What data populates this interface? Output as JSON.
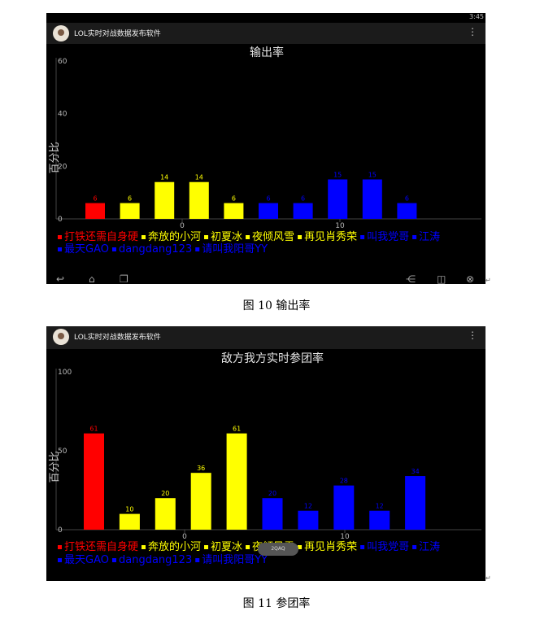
{
  "app": {
    "title": "LOL实时对战数据发布软件",
    "clock": "3:45",
    "overflow_icon": "more-vert-icon"
  },
  "figure1": {
    "caption": "图 10  输出率",
    "chart_data": {
      "type": "bar",
      "title": "输出率",
      "ylabel": "百分比",
      "ylim": [
        0,
        60
      ],
      "y_ticks": [
        "0",
        "20",
        "40",
        "60"
      ],
      "x_ticks": [
        "0",
        "10"
      ],
      "categories": [
        "打铁还需自身硬",
        "奔放的小河",
        "初夏冰",
        "夜倾风雪",
        "再见肖秀荣",
        "叫我党哥",
        "江涛",
        "最天GAO",
        "dangdang123",
        "请叫我阳哥YY"
      ],
      "values": [
        6,
        6,
        14,
        14,
        6,
        6,
        6,
        15,
        15,
        6
      ],
      "colors": [
        "#ff0000",
        "#ffff00",
        "#ffff00",
        "#ffff00",
        "#ffff00",
        "#0000ff",
        "#0000ff",
        "#0000ff",
        "#0000ff",
        "#0000ff"
      ]
    }
  },
  "figure2": {
    "caption": "图 11  参团率",
    "toast": "2QAQ",
    "chart_data": {
      "type": "bar",
      "title": "敌方我方实时参团率",
      "ylabel": "百分比",
      "ylim": [
        0,
        100
      ],
      "y_ticks": [
        "0",
        "50",
        "100"
      ],
      "x_ticks": [
        "0",
        "10"
      ],
      "categories": [
        "打铁还需自身硬",
        "奔放的小河",
        "初夏冰",
        "夜倾风雪",
        "再见肖秀荣",
        "叫我党哥",
        "江涛",
        "最天GAO",
        "dangdang123",
        "请叫我阳哥YY"
      ],
      "values": [
        61,
        10,
        20,
        36,
        61,
        20,
        12,
        28,
        12,
        34
      ],
      "colors": [
        "#ff0000",
        "#ffff00",
        "#ffff00",
        "#ffff00",
        "#ffff00",
        "#0000ff",
        "#0000ff",
        "#0000ff",
        "#0000ff",
        "#0000ff"
      ]
    }
  }
}
